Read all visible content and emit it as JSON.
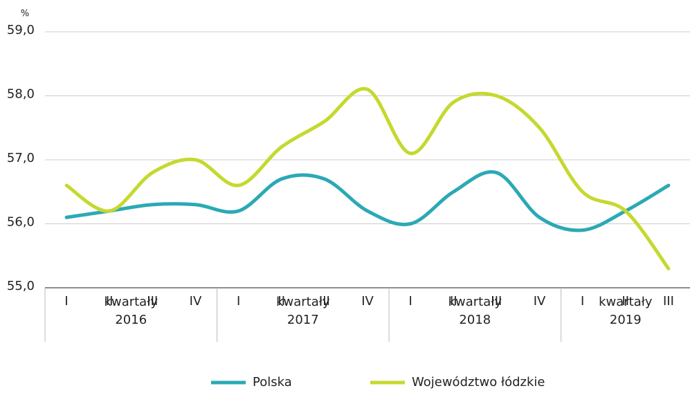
{
  "chart_data": {
    "type": "line",
    "ylabel": "%",
    "groups": [
      {
        "label": "kwartały",
        "year": "2016",
        "quarters": [
          "I",
          "II",
          "III",
          "IV"
        ]
      },
      {
        "label": "kwartały",
        "year": "2017",
        "quarters": [
          "I",
          "II",
          "III",
          "IV"
        ]
      },
      {
        "label": "kwartały",
        "year": "2018",
        "quarters": [
          "I",
          "II",
          "III",
          "IV"
        ]
      },
      {
        "label": "kwartały",
        "year": "2019",
        "quarters": [
          "I",
          "II",
          "III"
        ]
      }
    ],
    "series": [
      {
        "name": "Polska",
        "color": "#2ba9b5",
        "values": [
          56.1,
          56.2,
          56.3,
          56.3,
          56.2,
          56.7,
          56.7,
          56.2,
          56.0,
          56.5,
          56.8,
          56.1,
          55.9,
          56.2,
          56.6
        ]
      },
      {
        "name": "Województwo łódzkie",
        "color": "#c5d92e",
        "values": [
          56.6,
          56.2,
          56.8,
          57.0,
          56.6,
          57.2,
          57.6,
          58.1,
          57.1,
          57.9,
          58.0,
          57.5,
          56.5,
          56.2,
          55.3
        ]
      }
    ],
    "ylim": [
      55,
      59
    ],
    "yticks": [
      {
        "value": 55,
        "label": "55,0"
      },
      {
        "value": 56,
        "label": "56,0"
      },
      {
        "value": 57,
        "label": "57,0"
      },
      {
        "value": 58,
        "label": "58,0"
      },
      {
        "value": 59,
        "label": "59,0"
      }
    ],
    "grid": true,
    "legend": "bottom"
  }
}
